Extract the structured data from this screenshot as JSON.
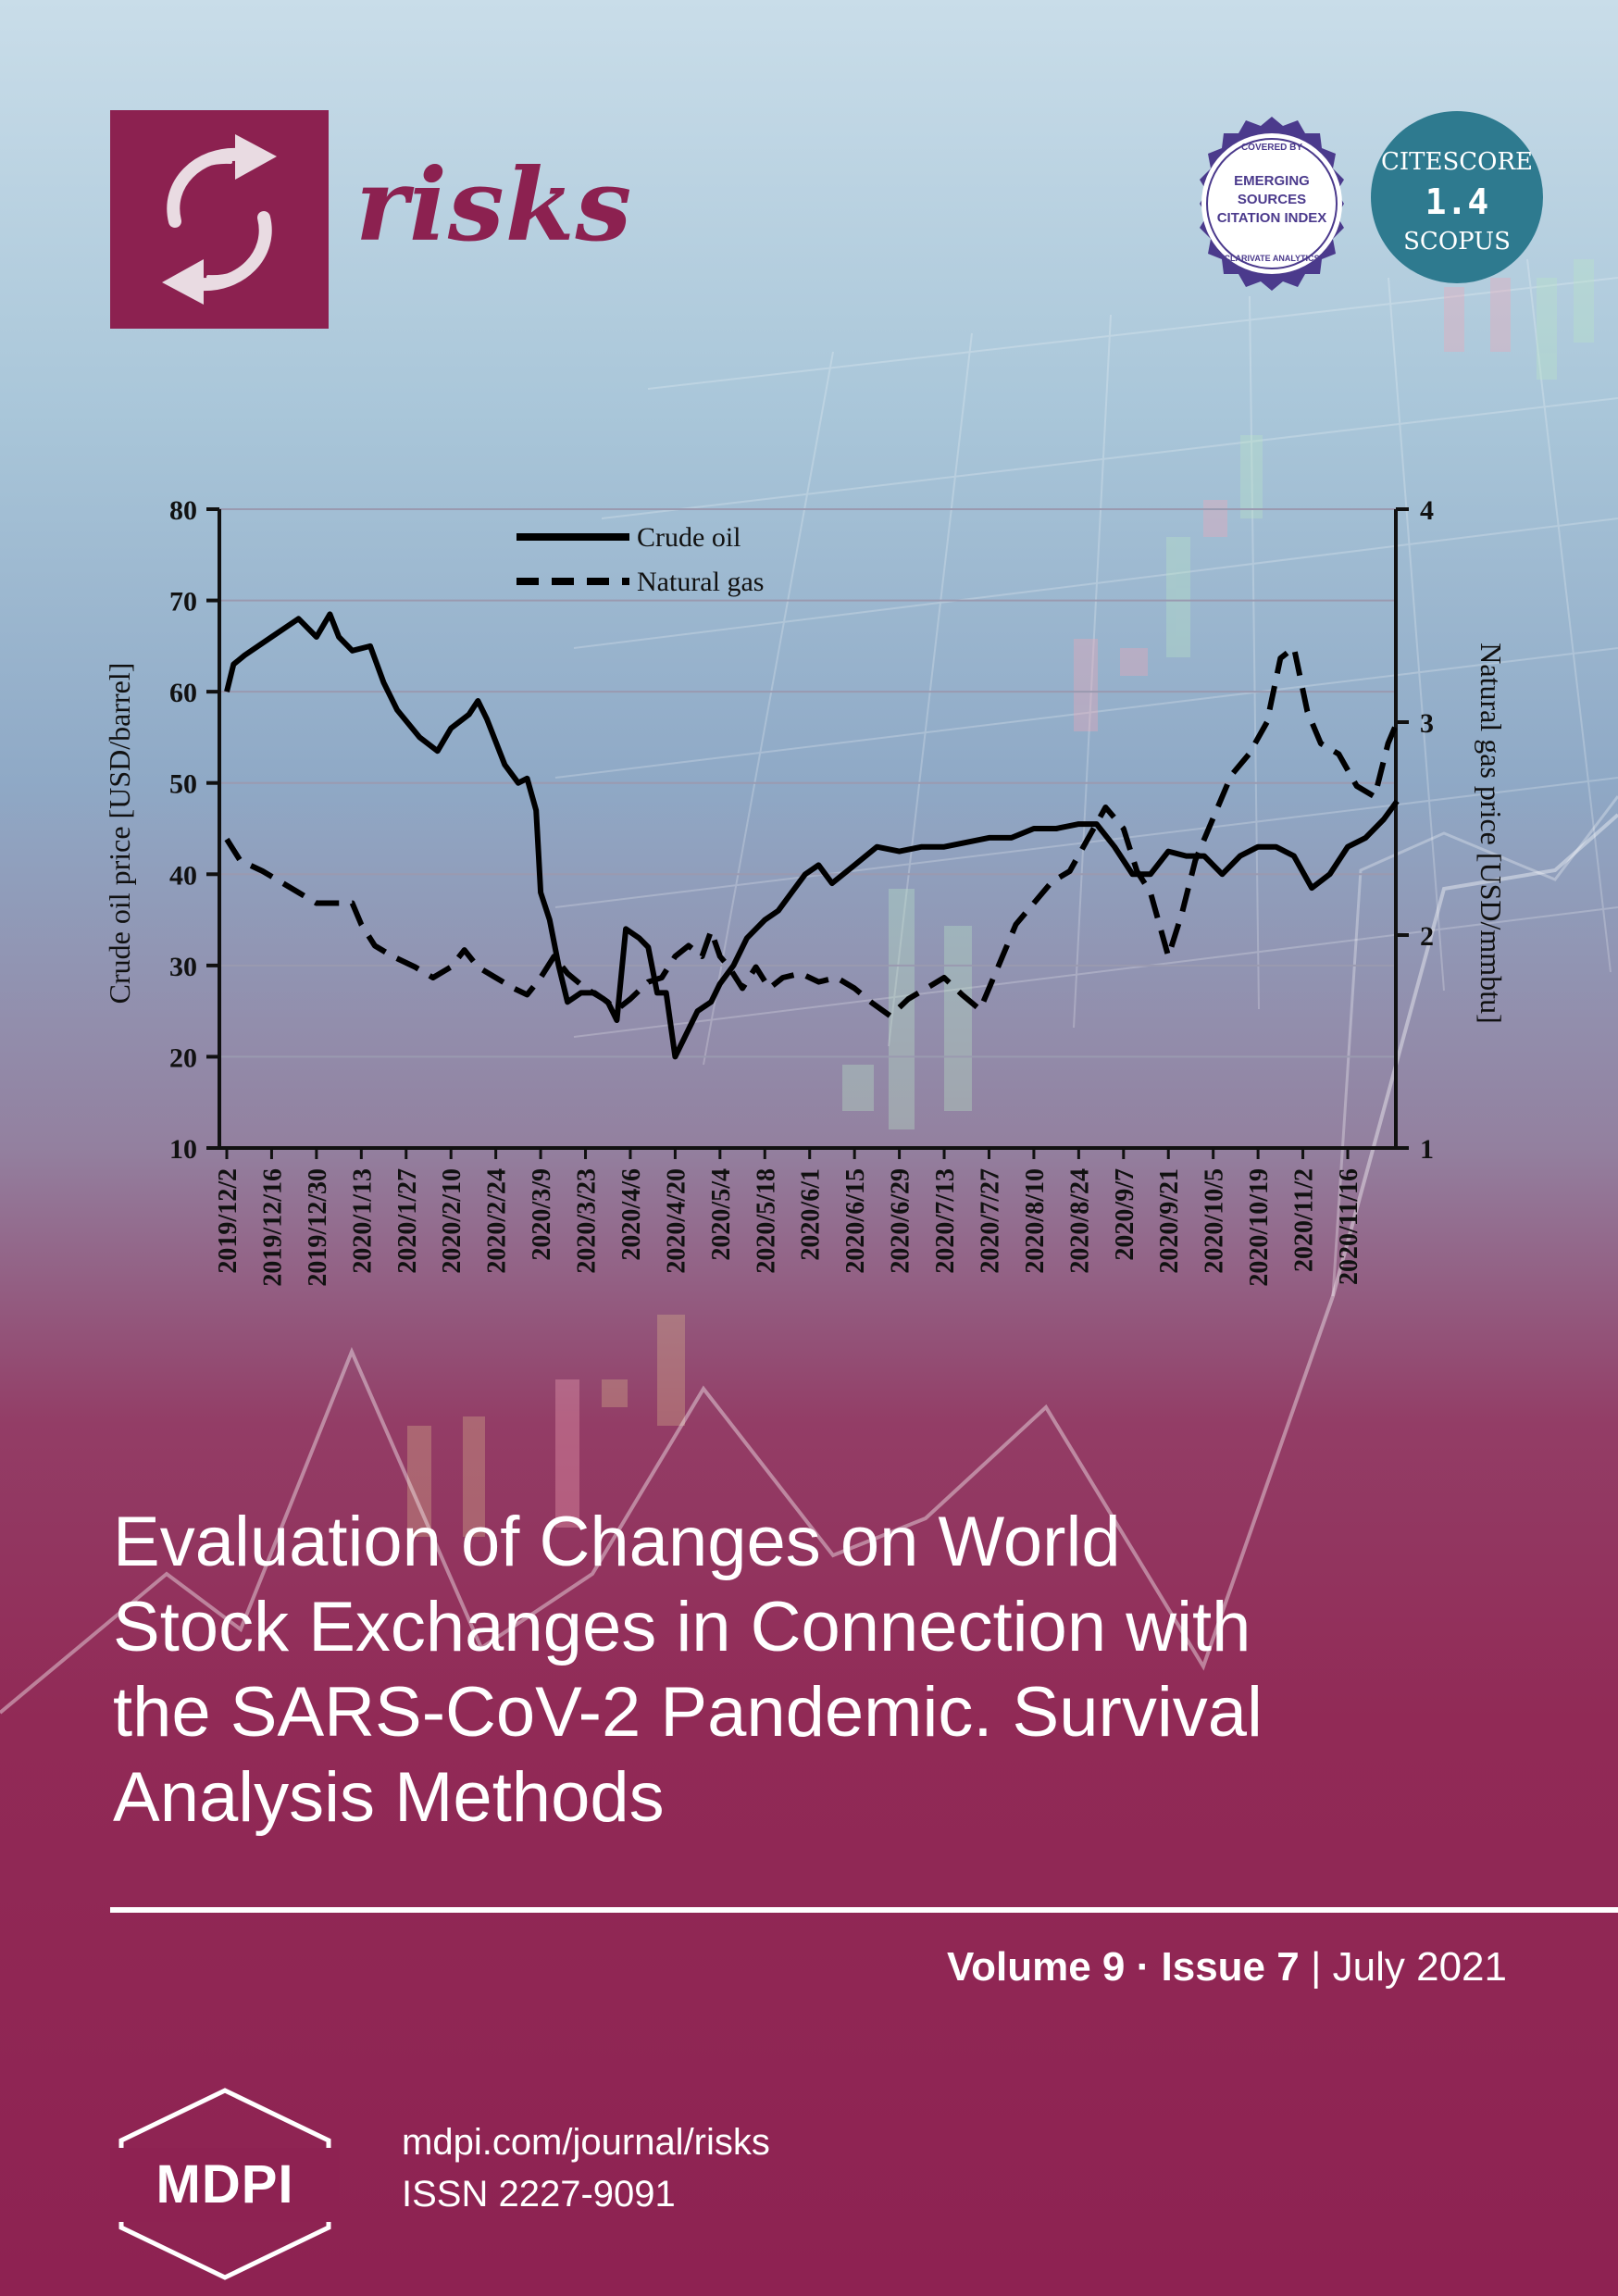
{
  "journal": {
    "name": "risks",
    "brand_color": "#8c2150",
    "logo_icon": "recycle-arrows-icon"
  },
  "badges": {
    "esci": {
      "top_text": "COVERED BY",
      "lines": [
        "EMERGING",
        "SOURCES",
        "CITATION INDEX"
      ],
      "bottom_text": "CLARIVATE ANALYTICS"
    },
    "citescore": {
      "label": "CITESCORE",
      "value": "1.4",
      "source": "SCOPUS",
      "color": "#2e7a8f"
    }
  },
  "chart_data": {
    "type": "line",
    "title": "",
    "xlabel": "",
    "ylabel": "Crude oil price [USD/barrel]",
    "ylabel_right": "Natural gas price [USD/mmbtu]",
    "ylim": [
      10,
      80
    ],
    "ylim_right": [
      1,
      4
    ],
    "yticks": [
      "80",
      "70",
      "60",
      "50",
      "40",
      "30",
      "20",
      "10"
    ],
    "yticks_right": [
      "4",
      "3",
      "2",
      "1"
    ],
    "categories": [
      "2019/12/2",
      "2019/12/16",
      "2019/12/30",
      "2020/1/13",
      "2020/1/27",
      "2020/2/10",
      "2020/2/24",
      "2020/3/9",
      "2020/3/23",
      "2020/4/6",
      "2020/4/20",
      "2020/5/4",
      "2020/5/18",
      "2020/6/1",
      "2020/6/15",
      "2020/6/29",
      "2020/7/13",
      "2020/7/27",
      "2020/8/10",
      "2020/8/24",
      "2020/9/7",
      "2020/9/21",
      "2020/10/5",
      "2020/10/19",
      "2020/11/2",
      "2020/11/16"
    ],
    "grid": true,
    "legend_position": "top-left",
    "series": [
      {
        "name": "Crude oil",
        "axis": "left",
        "style": "solid",
        "values": [
          [
            0,
            60
          ],
          [
            0.15,
            63
          ],
          [
            0.4,
            64
          ],
          [
            1,
            66
          ],
          [
            1.6,
            68
          ],
          [
            2,
            66
          ],
          [
            2.3,
            68.5
          ],
          [
            2.5,
            66
          ],
          [
            2.8,
            64.5
          ],
          [
            3.2,
            65
          ],
          [
            3.5,
            61
          ],
          [
            3.8,
            58
          ],
          [
            4.3,
            55
          ],
          [
            4.7,
            53.5
          ],
          [
            5,
            56
          ],
          [
            5.4,
            57.5
          ],
          [
            5.6,
            59
          ],
          [
            5.8,
            57
          ],
          [
            6.2,
            52
          ],
          [
            6.5,
            50
          ],
          [
            6.7,
            50.5
          ],
          [
            6.9,
            47
          ],
          [
            7,
            38
          ],
          [
            7.2,
            35
          ],
          [
            7.4,
            30
          ],
          [
            7.6,
            26
          ],
          [
            7.9,
            27
          ],
          [
            8.2,
            27
          ],
          [
            8.5,
            26
          ],
          [
            8.7,
            24
          ],
          [
            8.9,
            34
          ],
          [
            9.2,
            33
          ],
          [
            9.4,
            32
          ],
          [
            9.6,
            27
          ],
          [
            9.8,
            27
          ],
          [
            10,
            20
          ],
          [
            10.2,
            22
          ],
          [
            10.5,
            25
          ],
          [
            10.8,
            26
          ],
          [
            11,
            28
          ],
          [
            11.3,
            30
          ],
          [
            11.6,
            33
          ],
          [
            12,
            35
          ],
          [
            12.3,
            36
          ],
          [
            12.6,
            38
          ],
          [
            12.9,
            40
          ],
          [
            13.2,
            41
          ],
          [
            13.5,
            39
          ],
          [
            14,
            41
          ],
          [
            14.5,
            43
          ],
          [
            15,
            42.5
          ],
          [
            15.5,
            43
          ],
          [
            16,
            43
          ],
          [
            16.5,
            43.5
          ],
          [
            17,
            44
          ],
          [
            17.5,
            44
          ],
          [
            18,
            45
          ],
          [
            18.5,
            45
          ],
          [
            19,
            45.5
          ],
          [
            19.4,
            45.5
          ],
          [
            19.8,
            43
          ],
          [
            20.2,
            40
          ],
          [
            20.6,
            40
          ],
          [
            21,
            42.5
          ],
          [
            21.4,
            42
          ],
          [
            21.8,
            42
          ],
          [
            22.2,
            40
          ],
          [
            22.6,
            42
          ],
          [
            23,
            43
          ],
          [
            23.4,
            43
          ],
          [
            23.8,
            42
          ],
          [
            24.2,
            38.5
          ],
          [
            24.6,
            40
          ],
          [
            25,
            43
          ],
          [
            25.4,
            44
          ],
          [
            25.8,
            46
          ],
          [
            26.1,
            48
          ]
        ]
      },
      {
        "name": "Natural gas",
        "axis": "right",
        "style": "dashed",
        "values": [
          [
            0,
            2.45
          ],
          [
            0.3,
            2.35
          ],
          [
            0.8,
            2.3
          ],
          [
            1.2,
            2.25
          ],
          [
            1.6,
            2.2
          ],
          [
            2,
            2.15
          ],
          [
            2.4,
            2.15
          ],
          [
            2.8,
            2.15
          ],
          [
            3,
            2.05
          ],
          [
            3.3,
            1.95
          ],
          [
            3.7,
            1.9
          ],
          [
            4.2,
            1.85
          ],
          [
            4.6,
            1.8
          ],
          [
            5,
            1.85
          ],
          [
            5.3,
            1.93
          ],
          [
            5.6,
            1.85
          ],
          [
            6,
            1.8
          ],
          [
            6.4,
            1.75
          ],
          [
            6.7,
            1.72
          ],
          [
            7,
            1.8
          ],
          [
            7.3,
            1.9
          ],
          [
            7.6,
            1.82
          ],
          [
            8,
            1.75
          ],
          [
            8.4,
            1.7
          ],
          [
            8.7,
            1.65
          ],
          [
            9,
            1.7
          ],
          [
            9.4,
            1.78
          ],
          [
            9.7,
            1.8
          ],
          [
            10,
            1.9
          ],
          [
            10.3,
            1.95
          ],
          [
            10.6,
            1.9
          ],
          [
            10.8,
            2.02
          ],
          [
            11,
            1.9
          ],
          [
            11.2,
            1.85
          ],
          [
            11.5,
            1.75
          ],
          [
            11.8,
            1.85
          ],
          [
            12.1,
            1.75
          ],
          [
            12.4,
            1.8
          ],
          [
            12.8,
            1.82
          ],
          [
            13.2,
            1.78
          ],
          [
            13.6,
            1.8
          ],
          [
            14,
            1.75
          ],
          [
            14.4,
            1.68
          ],
          [
            14.8,
            1.62
          ],
          [
            15.2,
            1.7
          ],
          [
            15.6,
            1.75
          ],
          [
            16,
            1.8
          ],
          [
            16.4,
            1.72
          ],
          [
            16.8,
            1.65
          ],
          [
            17.2,
            1.85
          ],
          [
            17.6,
            2.05
          ],
          [
            18,
            2.15
          ],
          [
            18.4,
            2.25
          ],
          [
            18.8,
            2.3
          ],
          [
            19.2,
            2.45
          ],
          [
            19.6,
            2.6
          ],
          [
            20,
            2.5
          ],
          [
            20.3,
            2.3
          ],
          [
            20.6,
            2.2
          ],
          [
            21,
            1.9
          ],
          [
            21.3,
            2.1
          ],
          [
            21.6,
            2.35
          ],
          [
            22,
            2.55
          ],
          [
            22.4,
            2.75
          ],
          [
            22.8,
            2.85
          ],
          [
            23.2,
            3.0
          ],
          [
            23.5,
            3.3
          ],
          [
            23.8,
            3.35
          ],
          [
            24.1,
            3.05
          ],
          [
            24.4,
            2.9
          ],
          [
            24.8,
            2.85
          ],
          [
            25.2,
            2.7
          ],
          [
            25.6,
            2.65
          ],
          [
            25.9,
            2.9
          ],
          [
            26.1,
            3.0
          ]
        ]
      }
    ]
  },
  "article": {
    "title_lines": [
      "Evaluation of Changes on World",
      "Stock Exchanges in Connection with",
      "the SARS-CoV-2 Pandemic. Survival",
      "Analysis Methods"
    ]
  },
  "issue": {
    "volume": "Volume 9",
    "separator": "·",
    "issue": "Issue 7",
    "divider": "|",
    "date": "July 2021"
  },
  "publisher": {
    "name": "MDPI",
    "url": "mdpi.com/journal/risks",
    "issn": "ISSN 2227-9091"
  }
}
